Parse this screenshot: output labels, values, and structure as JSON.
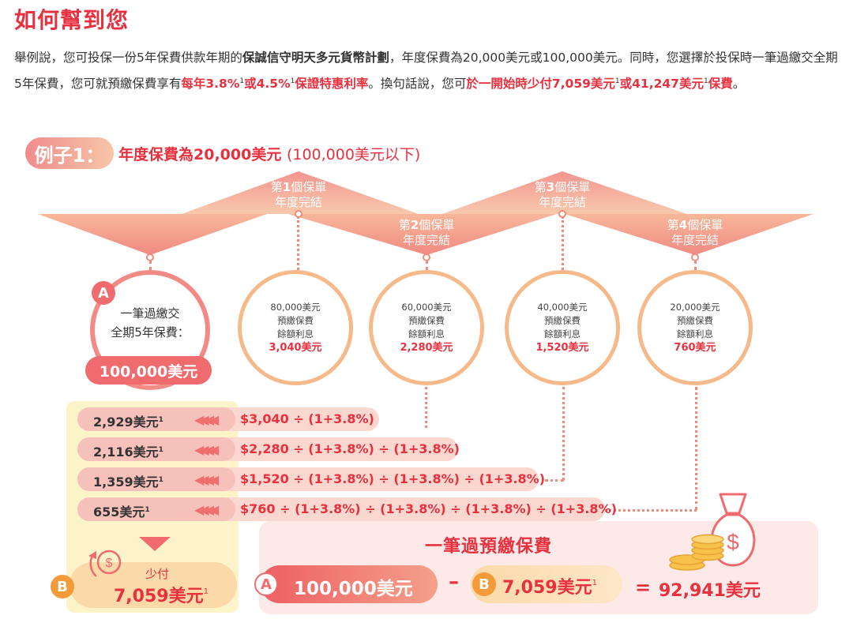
{
  "title": "如何幫到您",
  "paragraph": {
    "p1": "舉例說，您可投保一份5年保費供款年期的",
    "p2_bold": "保誠信守明天多元貨幣計劃",
    "p3": "，年度保費為20,000美元或100,000美元。同時，您選擇於投保時一筆過繳交全期5年保費，您可就預繳保費享有",
    "h1": "每年3.8%",
    "sup1": "1",
    "h1b": "或4.5%",
    "sup2": "1",
    "h1c": "保證特惠利率",
    "p4": "。換句話說，您可",
    "h2": "於一開始時少付7,059美元",
    "sup3": "1",
    "h2b": "或41,247美元",
    "sup4": "1",
    "h2c": "保費",
    "p5": "。"
  },
  "example": {
    "label": "例子1：",
    "text_a": "年度保費為20,000美元",
    "text_b": "(100,000美元以下)"
  },
  "policy_years": [
    {
      "pre": "第",
      "num": "1",
      "post": "個保單",
      "line2": "年度完結"
    },
    {
      "pre": "第",
      "num": "2",
      "post": "個保單",
      "line2": "年度完結"
    },
    {
      "pre": "第",
      "num": "3",
      "post": "個保單",
      "line2": "年度完結"
    },
    {
      "pre": "第",
      "num": "4",
      "post": "個保單",
      "line2": "年度完結"
    }
  ],
  "circle_a": {
    "badge": "A",
    "line1": "一筆過繳交",
    "line2": "全期5年保費：",
    "amount": "100,000美元"
  },
  "circles": [
    {
      "l1": "80,000美元",
      "l2": "預繳保費",
      "l3": "餘額利息",
      "amt": "3,040美元"
    },
    {
      "l1": "60,000美元",
      "l2": "預繳保費",
      "l3": "餘額利息",
      "amt": "2,280美元"
    },
    {
      "l1": "40,000美元",
      "l2": "預繳保費",
      "l3": "餘額利息",
      "amt": "1,520美元"
    },
    {
      "l1": "20,000美元",
      "l2": "預繳保費",
      "l3": "餘額利息",
      "amt": "760美元"
    }
  ],
  "discount_rows": [
    {
      "value": "2,929美元",
      "sup": "1",
      "formula": "$3,040 ÷ (1+3.8%)"
    },
    {
      "value": "2,116美元",
      "sup": "1",
      "formula": "$2,280 ÷ (1+3.8%) ÷ (1+3.8%)"
    },
    {
      "value": "1,359美元",
      "sup": "1",
      "formula": "$1,520 ÷ (1+3.8%) ÷ (1+3.8%) ÷ (1+3.8%)"
    },
    {
      "value": "655美元",
      "sup": "1",
      "formula": "$760 ÷ (1+3.8%) ÷ (1+3.8%) ÷ (1+3.8%) ÷ (1+3.8%)"
    }
  ],
  "pay_less": {
    "badge": "B",
    "label": "少付",
    "amount": "7,059美元",
    "sup": "1"
  },
  "equation": {
    "title": "一筆過預繳保費",
    "a_badge": "A",
    "a_amount": "100,000美元",
    "minus": "–",
    "b_badge": "B",
    "b_amount": "7,059美元",
    "b_sup": "1",
    "equals": "=",
    "result": "92,941美元"
  },
  "icons": {
    "arrows": "triple-left-arrow-icon",
    "dollar_cycle": "dollar-refresh-icon",
    "money_bag": "money-bag-icon",
    "coin_stack": "coin-stack-icon"
  }
}
